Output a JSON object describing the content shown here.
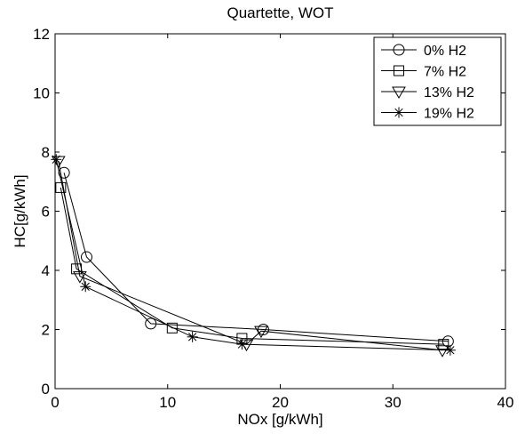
{
  "chart_data": {
    "type": "line",
    "title": "Quartette, WOT",
    "xlabel": "NOx [g/kWh]",
    "ylabel": "HC[g/kWh]",
    "xlim": [
      0,
      40
    ],
    "ylim": [
      0,
      12
    ],
    "xticks": [
      0,
      10,
      20,
      30,
      40
    ],
    "yticks": [
      0,
      2,
      4,
      6,
      8,
      10,
      12
    ],
    "grid": false,
    "legend_position": "top-right",
    "series": [
      {
        "name": "0% H2",
        "marker": "circle",
        "x": [
          34.9,
          18.5,
          8.5,
          2.8,
          0.8
        ],
        "y": [
          1.6,
          2.0,
          2.2,
          4.45,
          7.3
        ]
      },
      {
        "name": "7% H2",
        "marker": "square",
        "x": [
          34.5,
          16.6,
          10.4,
          1.9,
          0.5
        ],
        "y": [
          1.5,
          1.7,
          2.05,
          4.05,
          6.8
        ]
      },
      {
        "name": "13% H2",
        "marker": "triangle-down",
        "x": [
          34.4,
          18.3,
          17.0,
          2.2,
          0.3
        ],
        "y": [
          1.3,
          1.95,
          1.5,
          3.8,
          7.7
        ]
      },
      {
        "name": "19% H2",
        "marker": "asterisk",
        "x": [
          35.1,
          16.6,
          12.2,
          2.7,
          0.1
        ],
        "y": [
          1.3,
          1.5,
          1.75,
          3.45,
          7.75
        ]
      }
    ]
  }
}
